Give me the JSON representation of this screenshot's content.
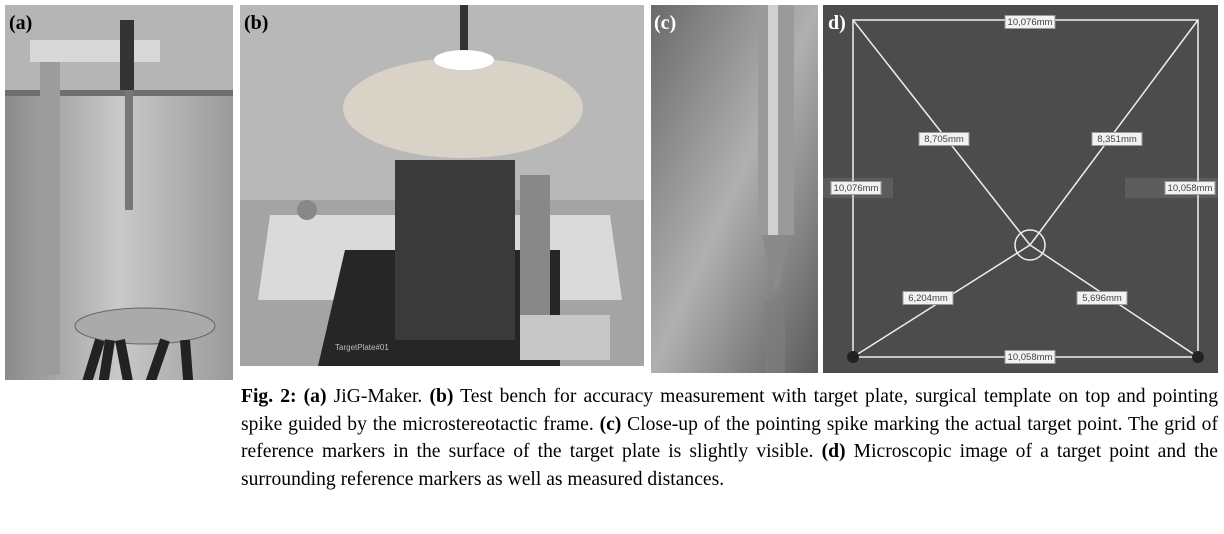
{
  "figure": {
    "panels": [
      {
        "label": "(a)"
      },
      {
        "label": "(b)",
        "plate_label": "TargetPlate#01"
      },
      {
        "label": "(c)"
      },
      {
        "label": "d)",
        "measurements": [
          "10,076mm",
          "8,705mm",
          "8,351mm",
          "10,076mm",
          "10,058mm",
          "6,204mm",
          "5,696mm",
          "10,058mm"
        ]
      }
    ]
  },
  "caption": {
    "label": "Fig. 2:",
    "parts": [
      {
        "label": "(a)",
        "text": "JiG-Maker."
      },
      {
        "label": "(b)",
        "text": "Test bench for accuracy measurement with target plate, surgical template on top and pointing spike guided by the microstereotactic frame."
      },
      {
        "label": "(c)",
        "text": "Close-up of the pointing spike marking the actual target point. The grid of reference markers in the surface of the target plate is slightly visible."
      },
      {
        "label": "(d)",
        "text": "Microscopic image of a target point and the surrounding reference markers as well as measured distances."
      }
    ]
  }
}
